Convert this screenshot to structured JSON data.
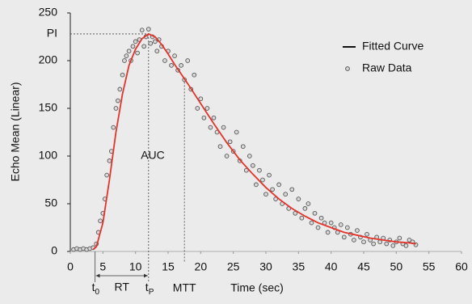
{
  "chart_data": {
    "type": "line",
    "xlabel": "Time (sec)",
    "ylabel": "Echo Mean (Linear)",
    "xlim": [
      0,
      60
    ],
    "xticks": [
      0,
      5,
      10,
      15,
      20,
      25,
      30,
      35,
      40,
      45,
      50,
      55,
      60
    ],
    "ylim": [
      0,
      250
    ],
    "yticks": [
      0,
      50,
      100,
      150,
      200,
      250
    ],
    "legend": "upper right",
    "series": [
      {
        "name": "Fitted Curve",
        "mark": "line",
        "color": "#e3342b",
        "x": [
          3.5,
          4,
          5,
          6,
          7,
          8,
          9,
          10,
          11,
          12,
          13,
          14,
          15,
          16,
          17,
          18,
          20,
          22,
          24,
          26,
          28,
          30,
          32,
          34,
          36,
          38,
          40,
          42,
          44,
          46,
          48,
          50,
          52,
          53
        ],
        "values": [
          2,
          5,
          30,
          75,
          125,
          165,
          195,
          212,
          223,
          228,
          225,
          217,
          207,
          196,
          186,
          176,
          155,
          134,
          114,
          96,
          81,
          67,
          55,
          45,
          37,
          30,
          25,
          20,
          17,
          14,
          12,
          10,
          9,
          8
        ]
      },
      {
        "name": "Raw Data",
        "mark": "scatter",
        "color": "#555555",
        "x": [
          0.5,
          1,
          1.5,
          2,
          2.5,
          3,
          3.5,
          4,
          4.3,
          4.6,
          5,
          5.3,
          5.6,
          6,
          6.3,
          6.6,
          7,
          7.3,
          7.6,
          8,
          8.3,
          8.6,
          9,
          9.3,
          9.6,
          10,
          10.3,
          10.6,
          11,
          11.3,
          11.6,
          12,
          12.3,
          12.6,
          13,
          13.3,
          13.6,
          14,
          14.5,
          15,
          15.5,
          16,
          16.5,
          17,
          17.5,
          18,
          18.5,
          19,
          19.5,
          20,
          20.5,
          21,
          21.5,
          22,
          22.5,
          23,
          23.5,
          24,
          24.5,
          25,
          25.5,
          26,
          26.5,
          27,
          27.5,
          28,
          28.5,
          29,
          29.5,
          30,
          30.5,
          31,
          31.5,
          32,
          32.5,
          33,
          33.5,
          34,
          34.5,
          35,
          35.5,
          36,
          36.5,
          37,
          37.5,
          38,
          38.5,
          39,
          39.5,
          40,
          40.5,
          41,
          41.5,
          42,
          42.5,
          43,
          43.5,
          44,
          44.5,
          45,
          45.5,
          46,
          46.5,
          47,
          47.5,
          48,
          48.5,
          49,
          49.5,
          50,
          50.5,
          51,
          51.5,
          52,
          52.5,
          53
        ],
        "values": [
          2,
          3,
          2,
          3,
          2,
          3,
          4,
          8,
          20,
          32,
          40,
          55,
          80,
          95,
          105,
          130,
          150,
          158,
          170,
          185,
          200,
          205,
          210,
          200,
          215,
          220,
          208,
          222,
          232,
          215,
          225,
          233,
          218,
          225,
          220,
          210,
          222,
          215,
          200,
          210,
          195,
          205,
          190,
          195,
          180,
          200,
          170,
          185,
          150,
          160,
          140,
          150,
          130,
          140,
          125,
          110,
          130,
          100,
          115,
          105,
          125,
          95,
          110,
          85,
          100,
          90,
          70,
          85,
          75,
          60,
          80,
          65,
          55,
          70,
          50,
          60,
          45,
          65,
          40,
          55,
          35,
          45,
          50,
          30,
          40,
          25,
          35,
          30,
          20,
          30,
          25,
          20,
          28,
          15,
          25,
          18,
          12,
          22,
          15,
          10,
          18,
          12,
          8,
          15,
          10,
          14,
          8,
          12,
          6,
          10,
          14,
          8,
          6,
          12,
          10,
          7
        ]
      }
    ],
    "annotations": {
      "pi": {
        "text": "PI",
        "y": 228
      },
      "auc": {
        "text": "AUC"
      },
      "t0": {
        "text": "t",
        "sub": "0",
        "x": 3.8
      },
      "tp": {
        "text": "t",
        "sub": "P",
        "x": 12
      },
      "rt": {
        "text": "RT"
      },
      "mtt": {
        "text": "MTT",
        "x": 17.5
      }
    }
  }
}
